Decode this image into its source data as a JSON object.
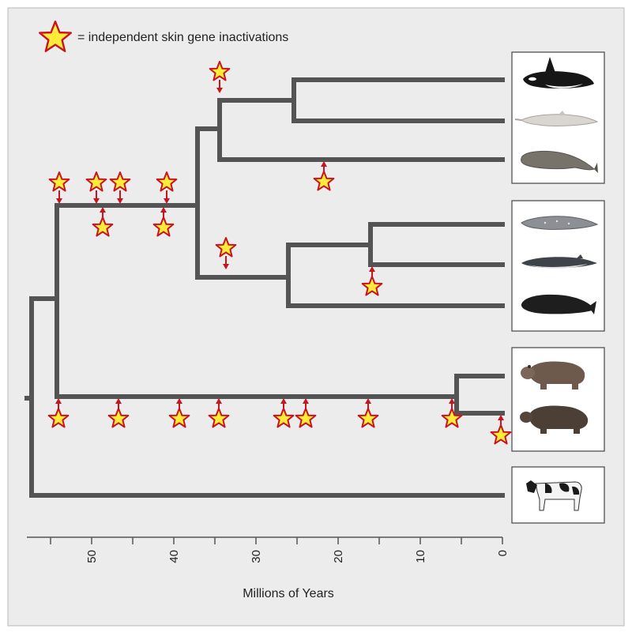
{
  "legend": {
    "text": "= independent skin gene inactivations",
    "icon": "star-icon"
  },
  "axis": {
    "label": "Millions of Years",
    "range_max": 57,
    "ticks": [
      "50",
      "40",
      "30",
      "20",
      "10",
      "0"
    ]
  },
  "colors": {
    "background": "#ececec",
    "branch": "#545454",
    "star_fill": "#ffec3a",
    "star_stroke": "#c8141e",
    "arrow": "#c8141e"
  },
  "taxa": [
    {
      "name": "killer-whale",
      "icon": "orca-icon"
    },
    {
      "name": "river-dolphin",
      "icon": "river-dolphin-icon"
    },
    {
      "name": "sperm-whale",
      "icon": "sperm-whale-icon"
    },
    {
      "name": "gray-whale",
      "icon": "gray-whale-icon"
    },
    {
      "name": "minke-whale",
      "icon": "minke-whale-icon"
    },
    {
      "name": "right-whale",
      "icon": "right-whale-icon"
    },
    {
      "name": "common-hippo",
      "icon": "hippo-icon"
    },
    {
      "name": "pygmy-hippo",
      "icon": "pygmy-hippo-icon"
    },
    {
      "name": "cow",
      "icon": "cow-icon"
    }
  ]
}
